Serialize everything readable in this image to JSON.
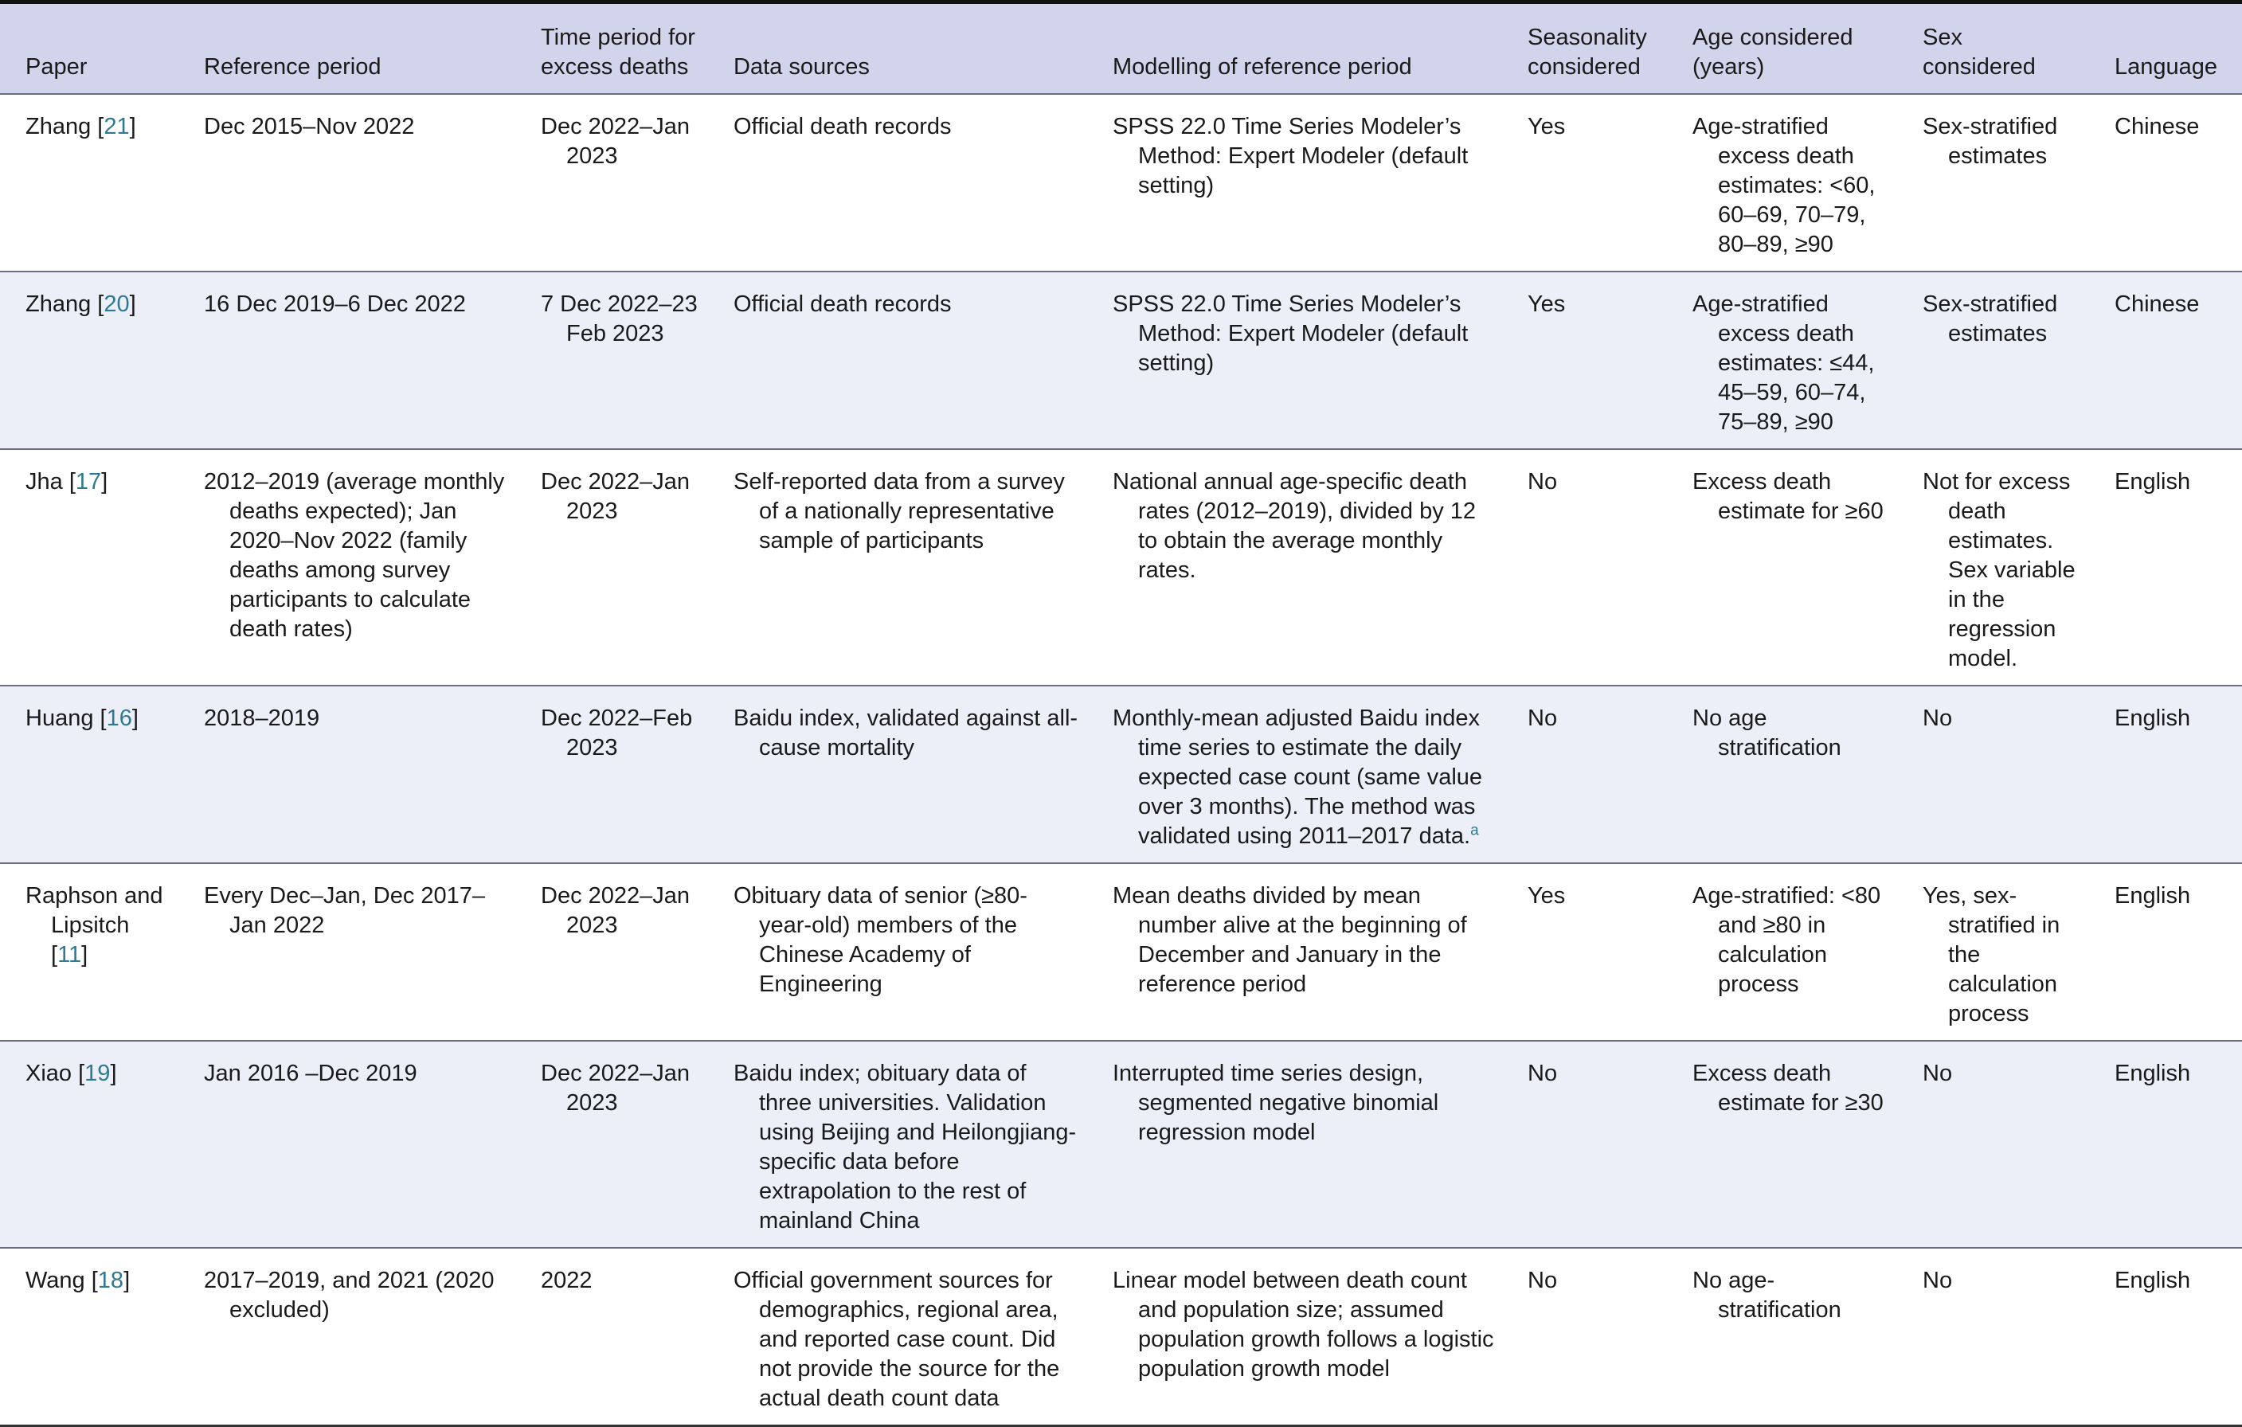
{
  "table": {
    "headers": [
      "Paper",
      "Reference period",
      "Time period for excess deaths",
      "Data sources",
      "Modelling of reference period",
      "Seasonality considered",
      "Age considered (years)",
      "Sex considered",
      "Language"
    ],
    "rows": [
      {
        "paper": {
          "name": "Zhang [",
          "ref": "21",
          "close": "]"
        },
        "reference_period": "Dec 2015–Nov 2022",
        "time_period": "Dec 2022–Jan 2023",
        "data_sources": "Official death records",
        "modelling": "SPSS 22.0 Time Series Modeler’s Method: Expert Modeler (default setting)",
        "modelling_note": "",
        "seasonality": "Yes",
        "age": "Age-stratified excess death estimates: <60, 60–69, 70–79, 80–89, ≥90",
        "sex": "Sex-stratified estimates",
        "language": "Chinese"
      },
      {
        "paper": {
          "name": "Zhang [",
          "ref": "20",
          "close": "]"
        },
        "reference_period": "16 Dec 2019–6 Dec 2022",
        "time_period": "7 Dec 2022–23 Feb 2023",
        "data_sources": "Official death records",
        "modelling": "SPSS 22.0 Time Series Modeler’s Method: Expert Modeler (default setting)",
        "modelling_note": "",
        "seasonality": "Yes",
        "age": "Age-stratified excess death estimates: ≤44, 45–59, 60–74, 75–89, ≥90",
        "sex": "Sex-stratified estimates",
        "language": "Chinese"
      },
      {
        "paper": {
          "name": "Jha [",
          "ref": "17",
          "close": "]"
        },
        "reference_period": "2012–2019 (average monthly deaths expected); Jan 2020–Nov 2022 (family deaths among survey participants to calculate death rates)",
        "time_period": "Dec 2022–Jan 2023",
        "data_sources": "Self-reported data from a survey of a nationally representative sample of participants",
        "modelling": "National annual age-specific death rates (2012–2019), divided by 12 to obtain the average monthly rates.",
        "modelling_note": "",
        "seasonality": "No",
        "age": "Excess death estimate for ≥60",
        "sex": "Not for excess death estimates. Sex variable in the regression model.",
        "language": "English"
      },
      {
        "paper": {
          "name": "Huang [",
          "ref": "16",
          "close": "]"
        },
        "reference_period": "2018–2019",
        "time_period": "Dec 2022–Feb 2023",
        "data_sources": "Baidu index, validated against all-cause mortality",
        "modelling": "Monthly-mean adjusted Baidu index time series to estimate the daily expected case count (same value over 3 months). The method was validated using 2011–2017 data.",
        "modelling_note": "a",
        "seasonality": "No",
        "age": "No age stratification",
        "sex": "No",
        "language": "English"
      },
      {
        "paper": {
          "name": "Raphson and Lipsitch [",
          "ref": "11",
          "close": "]"
        },
        "reference_period": "Every Dec–Jan, Dec 2017–Jan 2022",
        "time_period": "Dec 2022–Jan 2023",
        "data_sources": "Obituary data of senior (≥80-year-old) members of the Chinese Academy of Engineering",
        "modelling": "Mean deaths divided by mean number alive at the beginning of December and January in the reference period",
        "modelling_note": "",
        "seasonality": "Yes",
        "age": "Age-stratified: <80 and ≥80 in calculation process",
        "sex": "Yes, sex-stratified in the calculation process",
        "language": "English"
      },
      {
        "paper": {
          "name": "Xiao [",
          "ref": "19",
          "close": "]"
        },
        "reference_period": "Jan 2016 –Dec 2019",
        "time_period": "Dec 2022–Jan 2023",
        "data_sources": "Baidu index; obituary data of three universities. Validation using Beijing and Heilongjiang-specific data before extrapolation to the rest of mainland China",
        "modelling": "Interrupted time series design, segmented negative binomial regression model",
        "modelling_note": "",
        "seasonality": "No",
        "age": "Excess death estimate for ≥30",
        "sex": "No",
        "language": "English"
      },
      {
        "paper": {
          "name": "Wang [",
          "ref": "18",
          "close": "]"
        },
        "reference_period": "2017–2019, and 2021 (2020 excluded)",
        "time_period": "2022",
        "data_sources": "Official government sources for demographics, regional area, and reported case count. Did not provide the source for the actual death count data",
        "modelling": "Linear model between death count and population size; assumed population growth follows a logistic population growth model",
        "modelling_note": "",
        "seasonality": "No",
        "age": "No age-stratification",
        "sex": "No",
        "language": "English"
      }
    ]
  }
}
